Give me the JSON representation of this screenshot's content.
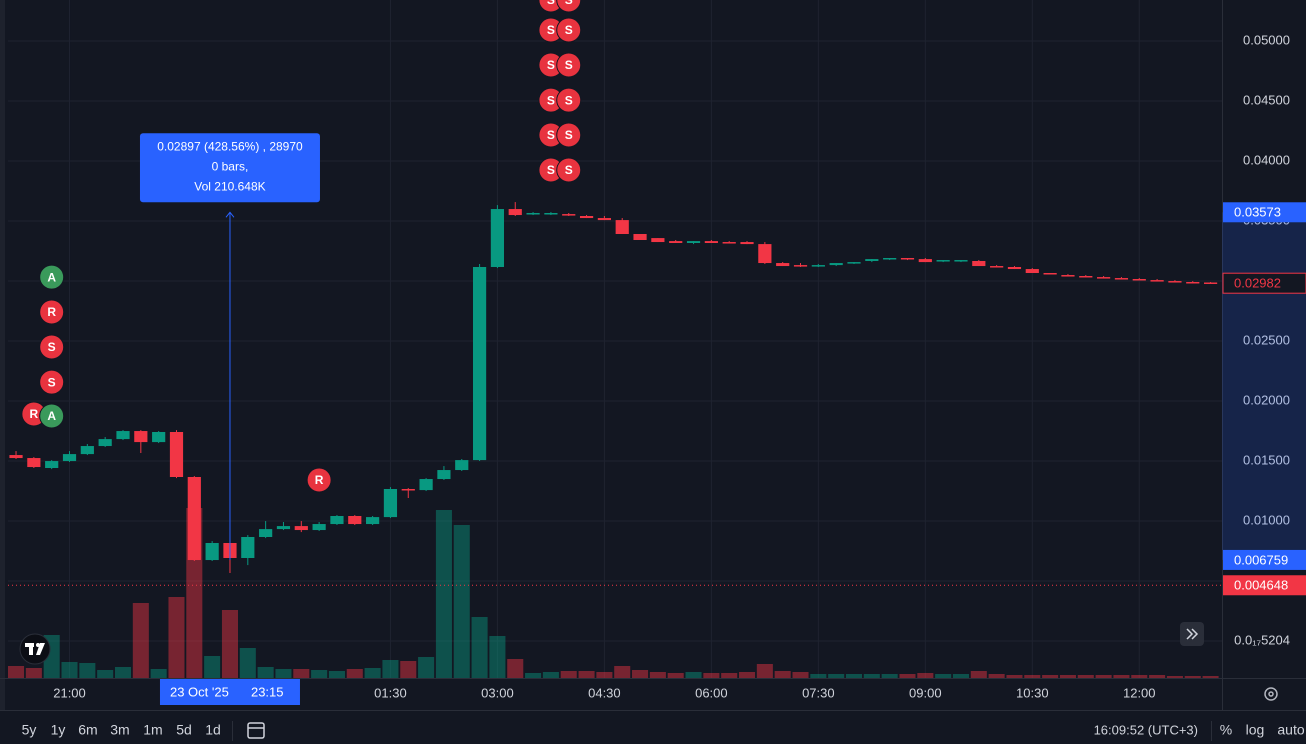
{
  "chart_data": {
    "type": "candlestick",
    "xlim": [
      -0.45,
      67.64
    ],
    "xticks": [
      {
        "value": 3,
        "label": "21:00"
      },
      {
        "value": 21,
        "label": "01:30"
      },
      {
        "value": 27,
        "label": "03:00"
      },
      {
        "value": 33,
        "label": "04:30"
      },
      {
        "value": 39,
        "label": "06:00"
      },
      {
        "value": 45,
        "label": "07:30"
      },
      {
        "value": 51,
        "label": "09:00"
      },
      {
        "value": 57,
        "label": "10:30"
      },
      {
        "value": 63,
        "label": "12:00"
      }
    ],
    "ylim": [
      -0.00308,
      0.05342
    ],
    "yticks": [
      {
        "value": 0.05,
        "label": "0.05000"
      },
      {
        "value": 0.045,
        "label": "0.04500"
      },
      {
        "value": 0.04,
        "label": "0.04000"
      },
      {
        "value": 0.035,
        "label": "0.03500"
      },
      {
        "value": 0.03,
        "label": "0.03000"
      },
      {
        "value": 0.025,
        "label": "0.02500"
      },
      {
        "value": 0.02,
        "label": "0.02000"
      },
      {
        "value": 0.015,
        "label": "0.01500"
      },
      {
        "value": 0.01,
        "label": "0.01000"
      },
      {
        "value": 0.005,
        "label": "0.00500"
      },
      {
        "value": 5.204e-21,
        "label": "0.0₁₇5204"
      }
    ],
    "grid": true,
    "up_color": "#089981",
    "down_color": "#f23645",
    "open": [
      0.0155,
      0.01525,
      0.01442,
      0.015,
      0.01558,
      0.01625,
      0.01683,
      0.0175,
      0.01658,
      0.01742,
      0.01367,
      0.00675,
      0.00817,
      0.00692,
      0.00867,
      0.00933,
      0.00958,
      0.00925,
      0.00975,
      0.01042,
      0.00975,
      0.01033,
      0.01267,
      0.01258,
      0.0135,
      0.01425,
      0.01508,
      0.03117,
      0.036,
      0.03558,
      0.03558,
      0.03558,
      0.03542,
      0.03525,
      0.03508,
      0.03392,
      0.03358,
      0.03333,
      0.03317,
      0.03333,
      0.03325,
      0.03325,
      0.03308,
      0.0315,
      0.03133,
      0.03125,
      0.03133,
      0.0315,
      0.03167,
      0.03183,
      0.03192,
      0.03183,
      0.03167,
      0.03167,
      0.03167,
      0.03125,
      0.03117,
      0.031,
      0.03067,
      0.0305,
      0.03042,
      0.03033,
      0.03025,
      0.03017,
      0.03008,
      0.03,
      0.02992,
      0.02988
    ],
    "high": [
      0.01583,
      0.01533,
      0.01508,
      0.01583,
      0.01642,
      0.017,
      0.01758,
      0.01758,
      0.0175,
      0.01758,
      0.01375,
      0.00833,
      0.00842,
      0.00883,
      0.01,
      0.00992,
      0.01,
      0.00992,
      0.0105,
      0.0105,
      0.01042,
      0.01283,
      0.01275,
      0.01358,
      0.01458,
      0.01517,
      0.03142,
      0.03633,
      0.03658,
      0.03575,
      0.03575,
      0.03567,
      0.0355,
      0.03542,
      0.03525,
      0.03392,
      0.03358,
      0.03342,
      0.03333,
      0.03342,
      0.03333,
      0.03333,
      0.03325,
      0.03158,
      0.0315,
      0.03142,
      0.0315,
      0.03158,
      0.03183,
      0.03192,
      0.03192,
      0.03192,
      0.03175,
      0.03175,
      0.03175,
      0.03133,
      0.03125,
      0.03108,
      0.03067,
      0.03058,
      0.0305,
      0.03042,
      0.03033,
      0.03025,
      0.03017,
      0.03008,
      0.03,
      0.02992
    ],
    "low": [
      0.01517,
      0.01442,
      0.01433,
      0.01492,
      0.0155,
      0.01617,
      0.01675,
      0.01567,
      0.0165,
      0.01358,
      0.00667,
      0.00667,
      0.00567,
      0.00633,
      0.00858,
      0.00925,
      0.00908,
      0.00917,
      0.00967,
      0.00967,
      0.00967,
      0.01025,
      0.01192,
      0.0125,
      0.01342,
      0.01417,
      0.015,
      0.03108,
      0.03542,
      0.0355,
      0.0355,
      0.03542,
      0.03525,
      0.03508,
      0.03392,
      0.03342,
      0.03325,
      0.03317,
      0.03308,
      0.03317,
      0.03317,
      0.03308,
      0.03142,
      0.03125,
      0.03117,
      0.03117,
      0.03125,
      0.03142,
      0.03158,
      0.03175,
      0.03175,
      0.03158,
      0.03158,
      0.03158,
      0.03125,
      0.03117,
      0.031,
      0.03067,
      0.03058,
      0.03042,
      0.03033,
      0.03025,
      0.03017,
      0.03008,
      0.03,
      0.02992,
      0.02983,
      0.02982
    ],
    "close": [
      0.01525,
      0.0145,
      0.015,
      0.01558,
      0.01625,
      0.01683,
      0.0175,
      0.01658,
      0.01742,
      0.01367,
      0.00675,
      0.00817,
      0.00692,
      0.00867,
      0.00933,
      0.00958,
      0.00925,
      0.00975,
      0.01042,
      0.00975,
      0.01033,
      0.01267,
      0.01258,
      0.0135,
      0.01425,
      0.01508,
      0.03117,
      0.036,
      0.0355,
      0.03567,
      0.03567,
      0.0355,
      0.03525,
      0.03508,
      0.03392,
      0.03342,
      0.03325,
      0.03317,
      0.03333,
      0.03317,
      0.03317,
      0.03308,
      0.0315,
      0.03125,
      0.03125,
      0.03133,
      0.0315,
      0.03158,
      0.03183,
      0.03192,
      0.03183,
      0.03158,
      0.03175,
      0.03175,
      0.03125,
      0.03117,
      0.031,
      0.03067,
      0.03058,
      0.03042,
      0.03033,
      0.03025,
      0.03017,
      0.03008,
      0.03,
      0.02992,
      0.02988,
      0.02982
    ],
    "volume": [
      12,
      10,
      43,
      16,
      15,
      8,
      11,
      75,
      9,
      81,
      170,
      22,
      68,
      30,
      11,
      9,
      9,
      8,
      7,
      9,
      10,
      18,
      17,
      21,
      168,
      153,
      61,
      42,
      19,
      5,
      6,
      7,
      7,
      6,
      12,
      8,
      6,
      5,
      6,
      5,
      5,
      6,
      14,
      7,
      6,
      4,
      4,
      4,
      4,
      4,
      4,
      5,
      4,
      4,
      7,
      4,
      3,
      3,
      3,
      3,
      3,
      3,
      3,
      3,
      3,
      2,
      2,
      2
    ],
    "volume_ylim": [
      0,
      678
    ],
    "markers": [
      {
        "label": "A",
        "color": "#3a9a5b",
        "x": 2,
        "y": 0.03033
      },
      {
        "label": "R",
        "color": "#e8333f",
        "x": 2,
        "y": 0.02742
      },
      {
        "label": "S",
        "color": "#e8333f",
        "x": 2,
        "y": 0.0245
      },
      {
        "label": "S",
        "color": "#e8333f",
        "x": 2,
        "y": 0.02158
      },
      {
        "label": "R",
        "color": "#e8333f",
        "x": 1,
        "y": 0.01892
      },
      {
        "label": "A",
        "color": "#3a9a5b",
        "x": 2,
        "y": 0.01875
      },
      {
        "label": "R",
        "color": "#e8333f",
        "x": 17,
        "y": 0.01342
      },
      {
        "label": "S",
        "color": "#e8333f",
        "x": 30,
        "y": 0.05342
      },
      {
        "label": "S",
        "color": "#e8333f",
        "x": 31,
        "y": 0.05342
      },
      {
        "label": "S",
        "color": "#e8333f",
        "x": 30,
        "y": 0.05092
      },
      {
        "label": "S",
        "color": "#e8333f",
        "x": 31,
        "y": 0.05092
      },
      {
        "label": "S",
        "color": "#e8333f",
        "x": 30,
        "y": 0.048
      },
      {
        "label": "S",
        "color": "#e8333f",
        "x": 31,
        "y": 0.048
      },
      {
        "label": "S",
        "color": "#e8333f",
        "x": 30,
        "y": 0.04508
      },
      {
        "label": "S",
        "color": "#e8333f",
        "x": 31,
        "y": 0.04508
      },
      {
        "label": "S",
        "color": "#e8333f",
        "x": 30,
        "y": 0.04217
      },
      {
        "label": "S",
        "color": "#e8333f",
        "x": 31,
        "y": 0.04217
      },
      {
        "label": "S",
        "color": "#e8333f",
        "x": 30,
        "y": 0.03925
      },
      {
        "label": "S",
        "color": "#e8333f",
        "x": 31,
        "y": 0.03925
      }
    ],
    "measure": {
      "x": 12,
      "from": 0.006759,
      "to": 0.03573,
      "color": "#2962ff",
      "lines": [
        "0.02897 (428.56%) , 28970",
        "0 bars,",
        "Vol 210.648K"
      ]
    },
    "last_price": 0.02982,
    "alert_line": 0.004648,
    "crosshair": {
      "x": 12,
      "date": "23 Oct '25",
      "time": "23:15"
    }
  },
  "toolbar": {
    "ranges": [
      "5y",
      "1y",
      "6m",
      "3m",
      "1m",
      "5d",
      "1d"
    ],
    "clock": "16:09:52 (UTC+3)",
    "options": [
      "%",
      "log",
      "auto"
    ]
  }
}
